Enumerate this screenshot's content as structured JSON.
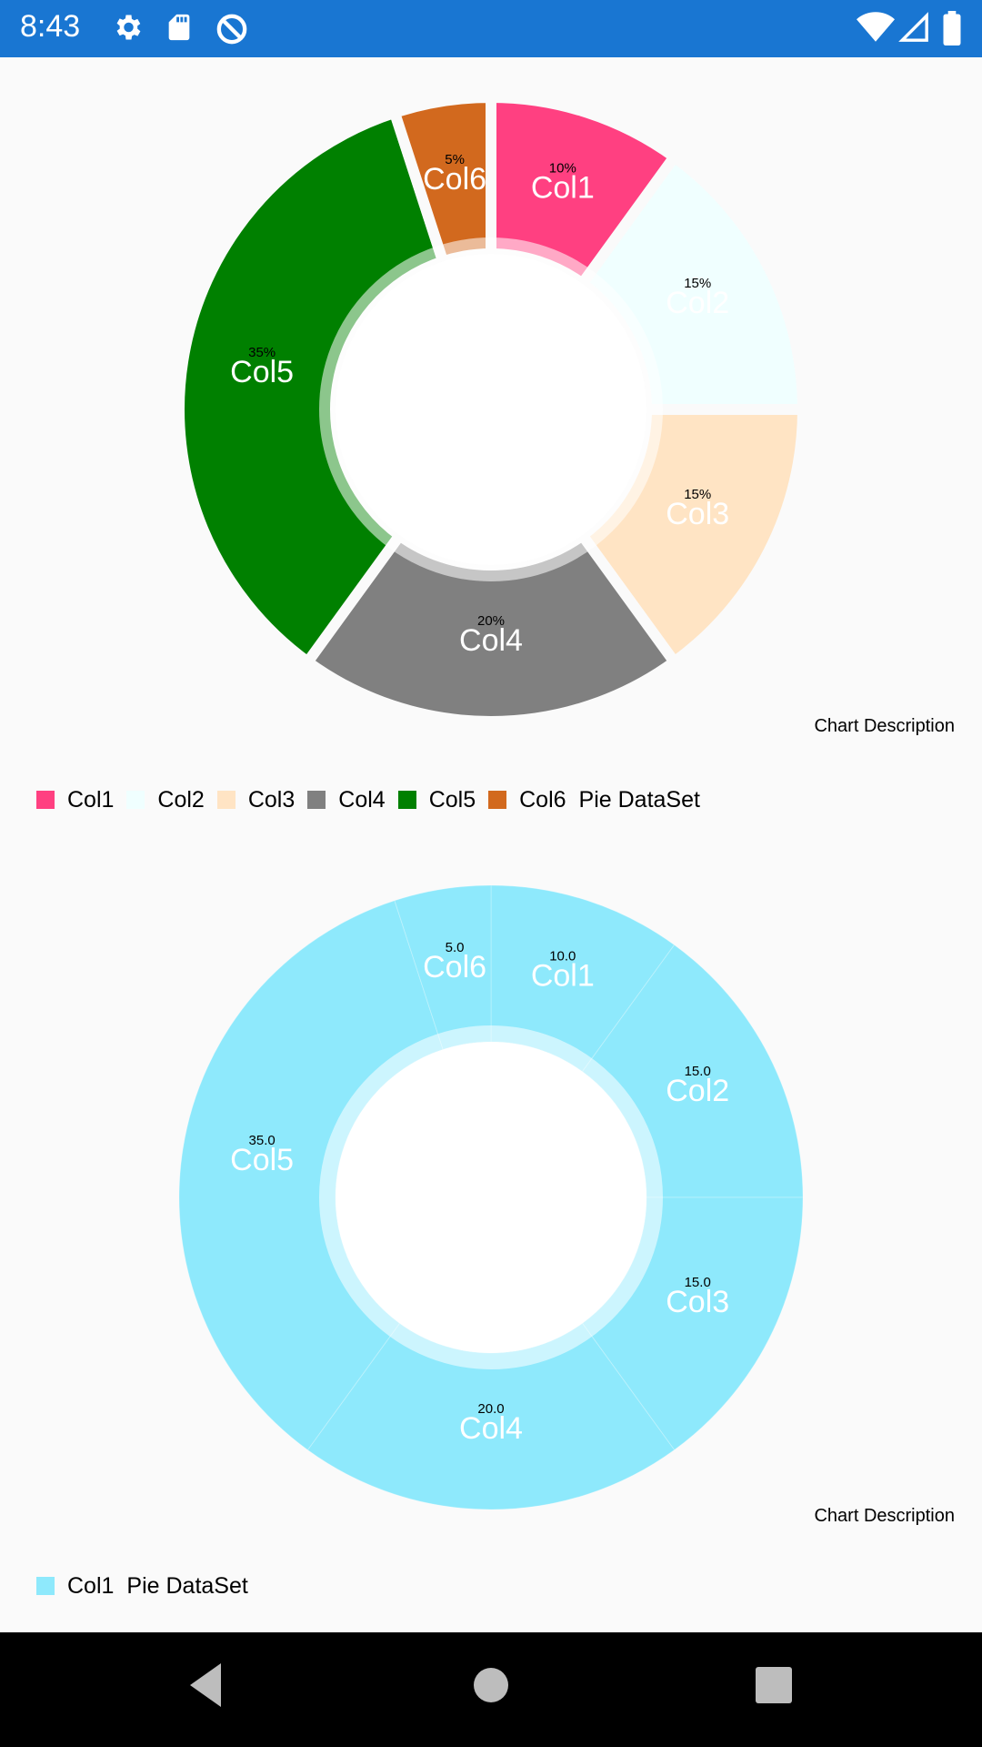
{
  "status_bar": {
    "time": "8:43",
    "left_icons": [
      "gear-icon",
      "sd-card-icon",
      "sync-icon"
    ],
    "right_icons": [
      "wifi-icon",
      "signal-icon",
      "battery-icon"
    ],
    "color": "#1976d2"
  },
  "chart_data": [
    {
      "type": "pie",
      "subtype": "donut",
      "categories": [
        "Col1",
        "Col2",
        "Col3",
        "Col4",
        "Col5",
        "Col6"
      ],
      "values": [
        10,
        15,
        15,
        20,
        35,
        5
      ],
      "value_labels": [
        "10%",
        "15%",
        "15%",
        "20%",
        "35%",
        "5%"
      ],
      "colors": [
        "#ff4081",
        "#f0ffff",
        "#ffe4c4",
        "#808080",
        "#008000",
        "#d2691e"
      ],
      "dataset_label": "Pie DataSet",
      "description": "Chart Description",
      "legend": "bottom-left"
    },
    {
      "type": "pie",
      "subtype": "donut",
      "categories": [
        "Col1",
        "Col2",
        "Col3",
        "Col4",
        "Col5",
        "Col6"
      ],
      "values": [
        10,
        15,
        15,
        20,
        35,
        5
      ],
      "value_labels": [
        "10.0",
        "15.0",
        "15.0",
        "20.0",
        "35.0",
        "5.0"
      ],
      "colors": [
        "#8ee9fc"
      ],
      "legend_entries": [
        "Col1"
      ],
      "dataset_label": "Pie DataSet",
      "description": "Chart Description",
      "legend": "bottom-left"
    }
  ],
  "nav_bar": {
    "buttons": [
      "back-icon",
      "home-icon",
      "recents-icon"
    ]
  }
}
